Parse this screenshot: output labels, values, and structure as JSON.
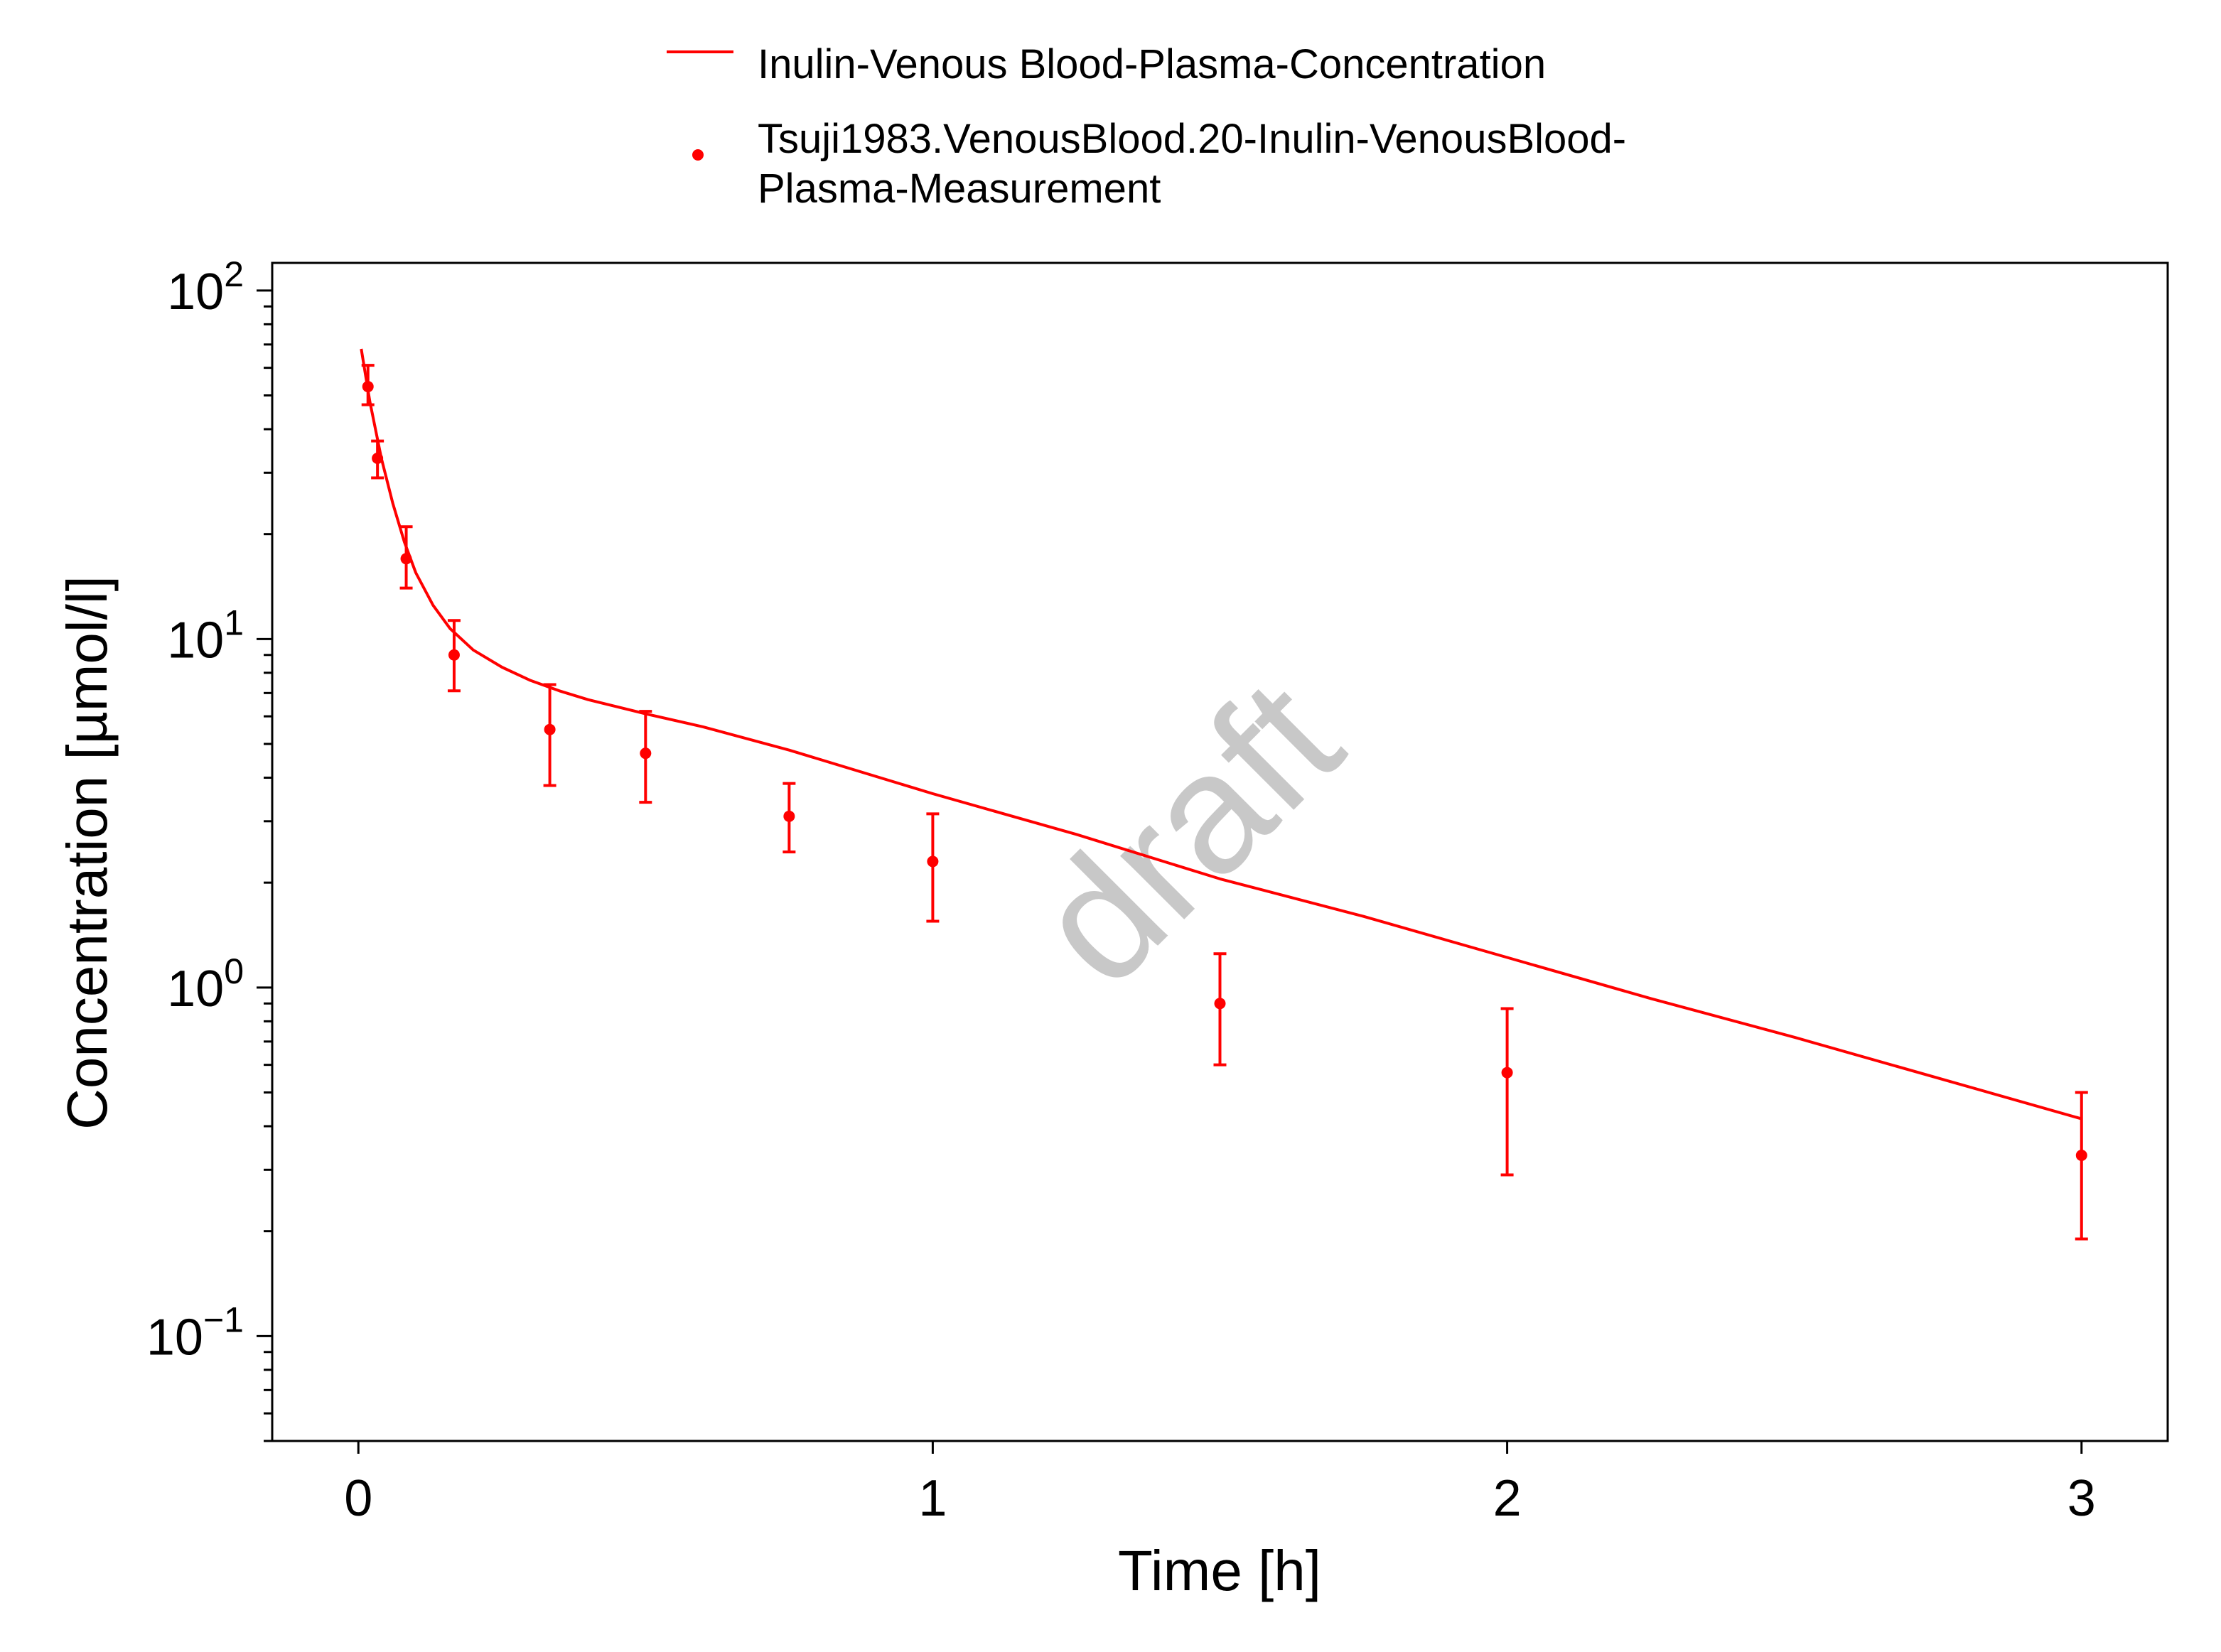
{
  "chart_data": {
    "type": "line",
    "title": "",
    "xlabel": "Time [h]",
    "ylabel": "Concentration [µmol/l]",
    "xlim": [
      -0.15,
      3.15
    ],
    "ylim": [
      0.05,
      120
    ],
    "yscale": "log",
    "grid": false,
    "legend_position": "top-center",
    "x_ticks": [
      "0",
      "1",
      "2",
      "3"
    ],
    "y_ticks": [
      {
        "value": 100,
        "base": "10",
        "exp": "2"
      },
      {
        "value": 10,
        "base": "10",
        "exp": "1"
      },
      {
        "value": 1,
        "base": "10",
        "exp": "0"
      },
      {
        "value": 0.1,
        "base": "10",
        "exp": "−1"
      }
    ],
    "watermark": "draft",
    "color": "#ff0000",
    "series": [
      {
        "name": "Inulin-Venous Blood-Plasma-Concentration",
        "kind": "line",
        "x": [
          0.005,
          0.02,
          0.04,
          0.06,
          0.08,
          0.1,
          0.13,
          0.16,
          0.2,
          0.25,
          0.3,
          0.35,
          0.4,
          0.5,
          0.6,
          0.75,
          1.0,
          1.25,
          1.5,
          1.75,
          2.0,
          2.25,
          2.5,
          2.75,
          3.0
        ],
        "y": [
          68,
          48,
          33,
          24.5,
          19,
          15.5,
          12.5,
          10.7,
          9.3,
          8.3,
          7.6,
          7.1,
          6.7,
          6.1,
          5.6,
          4.8,
          3.6,
          2.75,
          2.05,
          1.6,
          1.22,
          0.93,
          0.72,
          0.55,
          0.42
        ]
      },
      {
        "name": "Tsuji1983.VenousBlood.20-Inulin-VenousBlood-Plasma-Measurement",
        "legend_lines": [
          "Tsuji1983.VenousBlood.20-Inulin-VenousBlood-",
          "Plasma-Measurement"
        ],
        "kind": "scatter",
        "x": [
          0.0167,
          0.0333,
          0.0833,
          0.1667,
          0.3333,
          0.5,
          0.75,
          1.0,
          1.5,
          2.0,
          3.0
        ],
        "y": [
          53,
          33,
          17,
          9,
          5.5,
          4.7,
          3.1,
          2.3,
          0.9,
          0.57,
          0.33
        ],
        "y_err_low": [
          47,
          29,
          14,
          7.1,
          3.8,
          3.4,
          2.45,
          1.55,
          0.6,
          0.29,
          0.19
        ],
        "y_err_high": [
          61,
          37,
          21,
          11.3,
          7.4,
          6.2,
          3.85,
          3.15,
          1.25,
          0.87,
          0.5
        ]
      }
    ]
  }
}
